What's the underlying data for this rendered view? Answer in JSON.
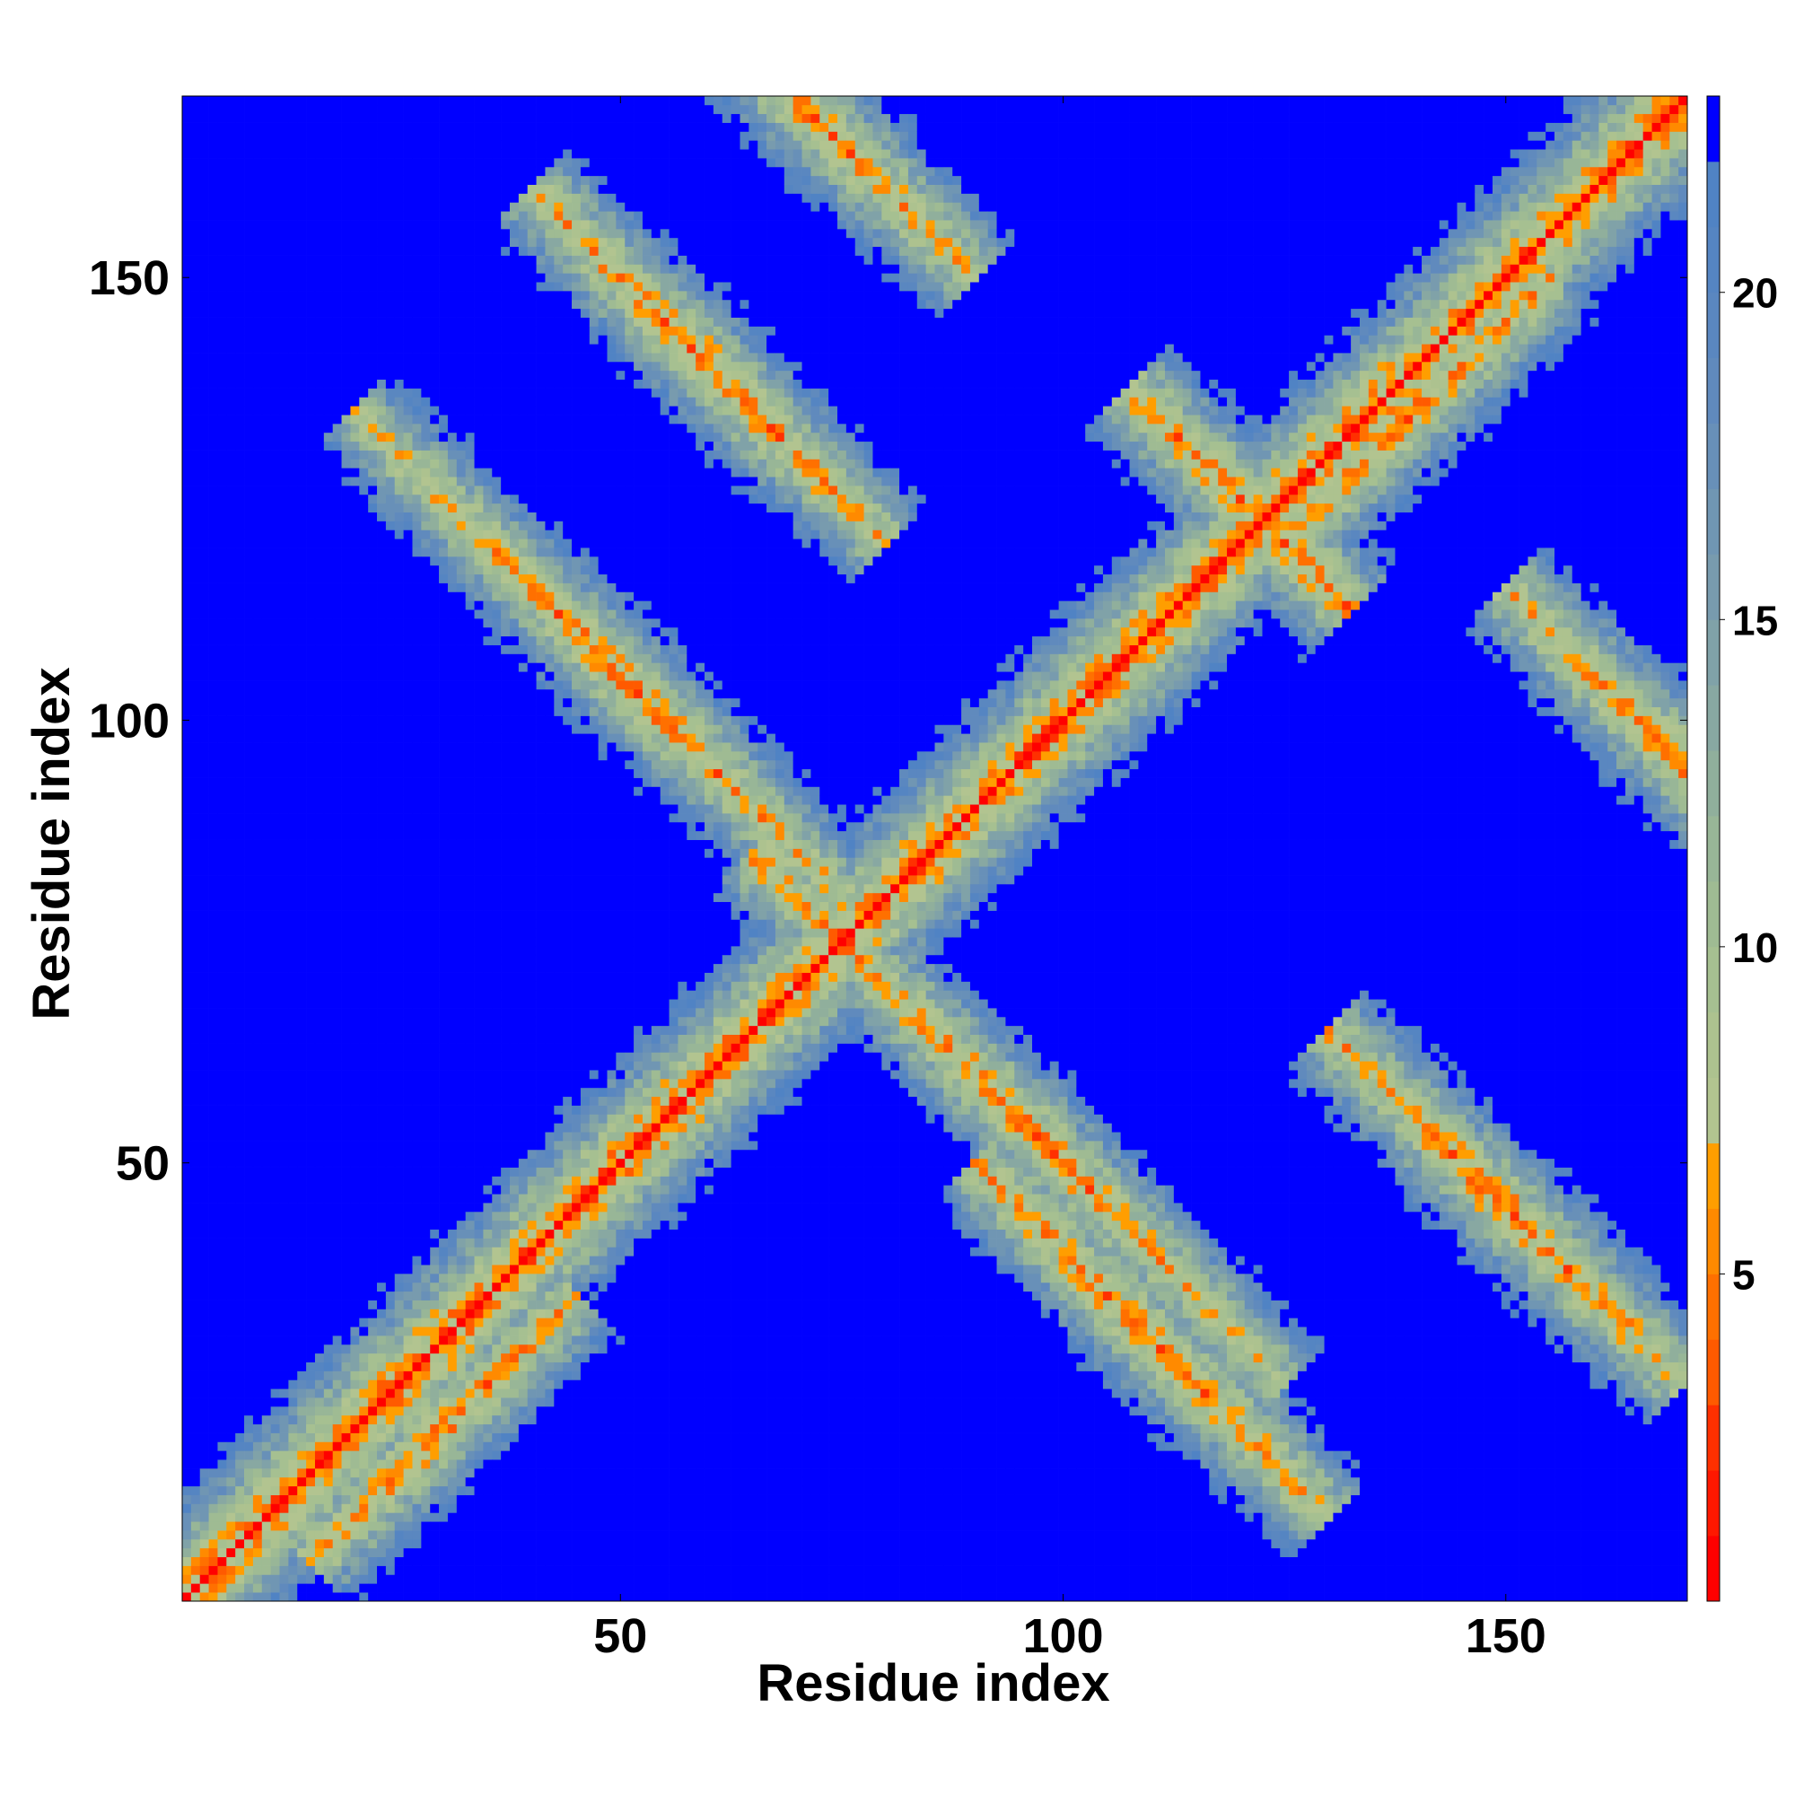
{
  "chart_data": {
    "type": "heatmap",
    "title": "",
    "xlabel": "Residue index",
    "ylabel": "Residue index",
    "n_residues": 170,
    "x_range": [
      1,
      170
    ],
    "y_range": [
      1,
      170
    ],
    "x_ticks": [
      50,
      100,
      150
    ],
    "y_ticks": [
      50,
      100,
      150
    ],
    "colorbar": {
      "range": [
        0,
        23
      ],
      "ticks": [
        5,
        10,
        15,
        20
      ],
      "levels": [
        {
          "max": 1.0,
          "color": "#ff0000"
        },
        {
          "max": 2.0,
          "color": "#ff1800"
        },
        {
          "max": 3.0,
          "color": "#ff3000"
        },
        {
          "max": 4.0,
          "color": "#ff5a00"
        },
        {
          "max": 5.0,
          "color": "#ff7000"
        },
        {
          "max": 6.0,
          "color": "#ff8a00"
        },
        {
          "max": 7.0,
          "color": "#ff9e00"
        },
        {
          "max": 8.0,
          "color": "#b2c490"
        },
        {
          "max": 9.0,
          "color": "#adc28f"
        },
        {
          "max": 10.0,
          "color": "#a6c091"
        },
        {
          "max": 11.0,
          "color": "#9fbb93"
        },
        {
          "max": 12.0,
          "color": "#98b697"
        },
        {
          "max": 13.0,
          "color": "#90af9c"
        },
        {
          "max": 14.0,
          "color": "#88a8a2"
        },
        {
          "max": 15.0,
          "color": "#80a2a8"
        },
        {
          "max": 16.0,
          "color": "#789bae"
        },
        {
          "max": 17.0,
          "color": "#7096b3"
        },
        {
          "max": 18.0,
          "color": "#6890b8"
        },
        {
          "max": 19.0,
          "color": "#608abd"
        },
        {
          "max": 20.0,
          "color": "#5a87c0"
        },
        {
          "max": 21.0,
          "color": "#5585c2"
        },
        {
          "max": 22.0,
          "color": "#5083c4"
        },
        {
          "max": 23.0,
          "color": "#0000ff"
        }
      ]
    },
    "values_description_pairs": [
      {
        "i_range": [
          1,
          170
        ],
        "j_offset": 0,
        "distance": 0.5
      },
      {
        "i_range": [
          1,
          170
        ],
        "j_offset": 1,
        "distance": 3.8
      },
      {
        "i_range": [
          1,
          170
        ],
        "j_offset": 2,
        "distance": 5.5
      }
    ],
    "contact_bands": [
      {
        "i_center": 50,
        "j_center": 105,
        "orientation": "anti",
        "length": 60
      },
      {
        "i_center": 60,
        "j_center": 140,
        "orientation": "anti",
        "length": 40
      },
      {
        "i_center": 110,
        "j_center": 30,
        "orientation": "anti",
        "length": 40
      },
      {
        "i_center": 95,
        "j_center": 55,
        "orientation": "anti",
        "length": 60
      },
      {
        "i_center": 150,
        "j_center": 45,
        "orientation": "anti",
        "length": 40
      },
      {
        "i_center": 30,
        "j_center": 20,
        "orientation": "parallel",
        "length": 30
      },
      {
        "i_center": 120,
        "j_center": 125,
        "orientation": "anti",
        "length": 25
      },
      {
        "i_center": 70,
        "j_center": 170,
        "orientation": "anti",
        "length": 40
      },
      {
        "i_center": 170,
        "j_center": 95,
        "orientation": "anti",
        "length": 40
      },
      {
        "i_center": 140,
        "j_center": 135,
        "orientation": "parallel",
        "length": 30
      }
    ]
  }
}
